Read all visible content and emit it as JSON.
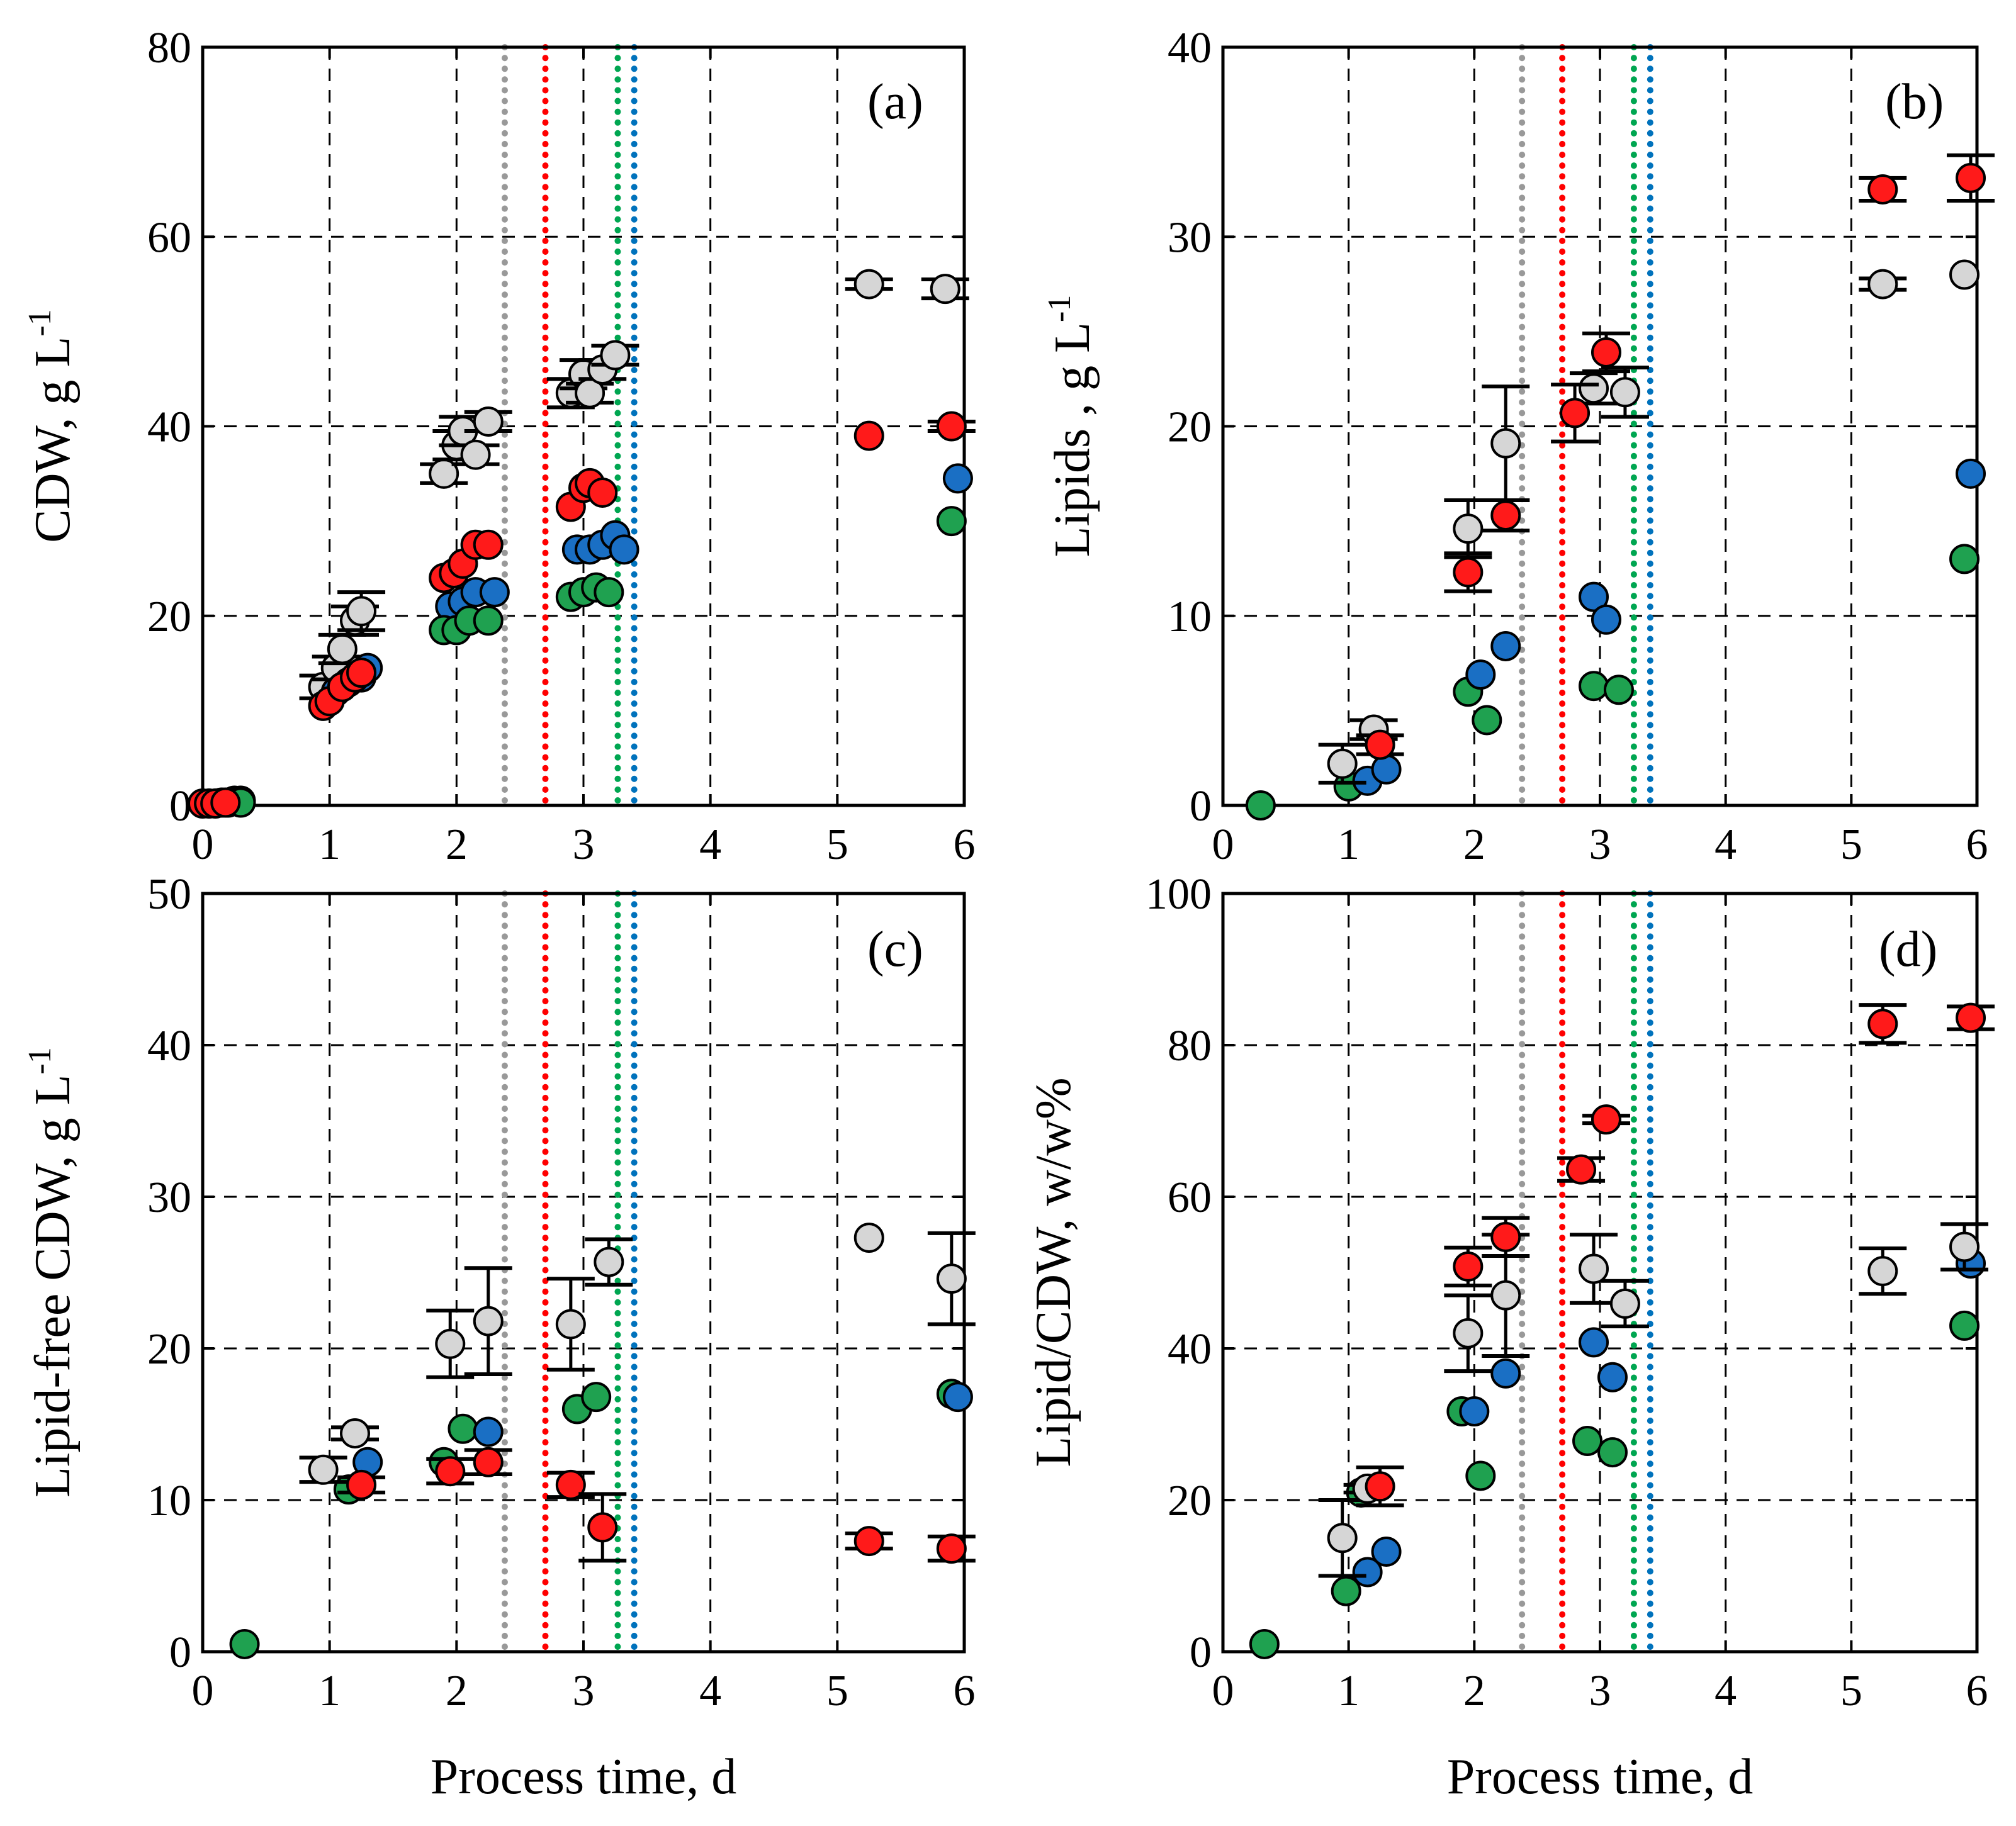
{
  "colors": {
    "gray": "#d6d6d6",
    "red": "#ff1a1a",
    "blue": "#1a6fc4",
    "green": "#1fa150",
    "line_gray": "#999999",
    "line_red": "#ff0000",
    "line_green": "#00a651",
    "line_blue": "#0072bc"
  },
  "xlabel": "Process time, d",
  "chart_data": [
    {
      "type": "scatter",
      "panel": "(a)",
      "ylabel": "CDW, g L",
      "ylabel_sup": "-1",
      "xlim": [
        0,
        6
      ],
      "ylim": [
        0,
        80
      ],
      "x_ticks": [
        "0",
        "1",
        "2",
        "3",
        "4",
        "5",
        "6"
      ],
      "y_ticks": [
        "0",
        "20",
        "40",
        "60",
        "80"
      ],
      "grid": true,
      "vlines": [
        {
          "x": 2.38,
          "color": "gray"
        },
        {
          "x": 2.7,
          "color": "red"
        },
        {
          "x": 3.27,
          "color": "green"
        },
        {
          "x": 3.4,
          "color": "blue"
        }
      ],
      "series": [
        {
          "color": "gray",
          "points": [
            {
              "x": 0.25,
              "y": 0.5
            },
            {
              "x": 0.3,
              "y": 0.5
            },
            {
              "x": 0.95,
              "y": 12.5,
              "err": 1.2
            },
            {
              "x": 1.05,
              "y": 14.5,
              "err": 1.2
            },
            {
              "x": 1.1,
              "y": 16.5,
              "err": 1.5
            },
            {
              "x": 1.2,
              "y": 19.5,
              "err": 1.5
            },
            {
              "x": 1.25,
              "y": 20.5,
              "err": 2.0
            },
            {
              "x": 1.9,
              "y": 35.0,
              "err": 1.0
            },
            {
              "x": 2.0,
              "y": 38.0,
              "err": 1.5
            },
            {
              "x": 2.05,
              "y": 39.5,
              "err": 1.5
            },
            {
              "x": 2.15,
              "y": 37.0,
              "err": 1.0
            },
            {
              "x": 2.25,
              "y": 40.5,
              "err": 1.0
            },
            {
              "x": 2.9,
              "y": 43.5,
              "err": 1.5
            },
            {
              "x": 3.0,
              "y": 45.5,
              "err": 1.5
            },
            {
              "x": 3.05,
              "y": 43.5,
              "err": 1.0
            },
            {
              "x": 3.15,
              "y": 46.0,
              "err": 1.0
            },
            {
              "x": 3.25,
              "y": 47.5,
              "err": 1.0
            },
            {
              "x": 5.25,
              "y": 55.0,
              "err": 0.5
            },
            {
              "x": 5.85,
              "y": 54.5,
              "err": 1.0
            }
          ]
        },
        {
          "color": "blue",
          "points": [
            {
              "x": 0.15,
              "y": 0.3
            },
            {
              "x": 0.2,
              "y": 0.3
            },
            {
              "x": 1.05,
              "y": 12.0
            },
            {
              "x": 1.15,
              "y": 13.0
            },
            {
              "x": 1.25,
              "y": 13.5
            },
            {
              "x": 1.3,
              "y": 14.5
            },
            {
              "x": 1.95,
              "y": 21.0
            },
            {
              "x": 2.05,
              "y": 21.5
            },
            {
              "x": 2.15,
              "y": 22.5
            },
            {
              "x": 2.3,
              "y": 22.5
            },
            {
              "x": 2.95,
              "y": 27.0
            },
            {
              "x": 3.05,
              "y": 27.0
            },
            {
              "x": 3.15,
              "y": 27.5
            },
            {
              "x": 3.25,
              "y": 28.5
            },
            {
              "x": 3.32,
              "y": 27.0
            },
            {
              "x": 5.95,
              "y": 34.5
            }
          ]
        },
        {
          "color": "green",
          "points": [
            {
              "x": 0.3,
              "y": 0.3
            },
            {
              "x": 1.9,
              "y": 18.5
            },
            {
              "x": 2.0,
              "y": 18.5
            },
            {
              "x": 2.1,
              "y": 19.5
            },
            {
              "x": 2.25,
              "y": 19.5
            },
            {
              "x": 2.9,
              "y": 22.0
            },
            {
              "x": 3.0,
              "y": 22.5
            },
            {
              "x": 3.1,
              "y": 23.0
            },
            {
              "x": 3.2,
              "y": 22.5
            },
            {
              "x": 5.9,
              "y": 30.0
            }
          ]
        },
        {
          "color": "red",
          "points": [
            {
              "x": 0.0,
              "y": 0.2
            },
            {
              "x": 0.05,
              "y": 0.2
            },
            {
              "x": 0.1,
              "y": 0.2
            },
            {
              "x": 0.18,
              "y": 0.3
            },
            {
              "x": 0.95,
              "y": 10.5
            },
            {
              "x": 1.0,
              "y": 11.0
            },
            {
              "x": 1.1,
              "y": 12.5
            },
            {
              "x": 1.2,
              "y": 13.5
            },
            {
              "x": 1.25,
              "y": 14.0
            },
            {
              "x": 1.9,
              "y": 24.0
            },
            {
              "x": 1.98,
              "y": 24.5
            },
            {
              "x": 2.05,
              "y": 25.5
            },
            {
              "x": 2.15,
              "y": 27.5
            },
            {
              "x": 2.25,
              "y": 27.5
            },
            {
              "x": 2.9,
              "y": 31.5
            },
            {
              "x": 3.0,
              "y": 33.5
            },
            {
              "x": 3.05,
              "y": 34.0
            },
            {
              "x": 3.15,
              "y": 33.0
            },
            {
              "x": 5.25,
              "y": 39.0
            },
            {
              "x": 5.9,
              "y": 40.0,
              "err": 0.5
            }
          ]
        }
      ]
    },
    {
      "type": "scatter",
      "panel": "(b)",
      "ylabel": "Lipids , g L",
      "ylabel_sup": "-1",
      "xlim": [
        0,
        6
      ],
      "ylim": [
        0,
        40
      ],
      "x_ticks": [
        "0",
        "1",
        "2",
        "3",
        "4",
        "5",
        "6"
      ],
      "y_ticks": [
        "0",
        "10",
        "20",
        "30",
        "40"
      ],
      "grid": true,
      "vlines": [
        {
          "x": 2.38,
          "color": "gray"
        },
        {
          "x": 2.7,
          "color": "red"
        },
        {
          "x": 3.27,
          "color": "green"
        },
        {
          "x": 3.4,
          "color": "blue"
        }
      ],
      "series": [
        {
          "color": "green",
          "points": [
            {
              "x": 0.3,
              "y": 0.0
            },
            {
              "x": 1.0,
              "y": 1.0
            },
            {
              "x": 1.95,
              "y": 6.0
            },
            {
              "x": 2.1,
              "y": 4.5
            },
            {
              "x": 2.95,
              "y": 6.3
            },
            {
              "x": 3.15,
              "y": 6.1
            },
            {
              "x": 5.9,
              "y": 13.0
            }
          ]
        },
        {
          "color": "blue",
          "points": [
            {
              "x": 1.15,
              "y": 1.3
            },
            {
              "x": 1.3,
              "y": 1.9
            },
            {
              "x": 2.05,
              "y": 6.9
            },
            {
              "x": 2.25,
              "y": 8.4
            },
            {
              "x": 2.95,
              "y": 11.0
            },
            {
              "x": 3.05,
              "y": 9.8
            },
            {
              "x": 5.95,
              "y": 17.5
            }
          ]
        },
        {
          "color": "gray",
          "points": [
            {
              "x": 0.95,
              "y": 2.2,
              "err": 1.0
            },
            {
              "x": 1.2,
              "y": 4.0,
              "err": 0.5
            },
            {
              "x": 1.95,
              "y": 14.6,
              "err": 1.5
            },
            {
              "x": 2.25,
              "y": 19.1,
              "err": 3.0
            },
            {
              "x": 2.95,
              "y": 22.0,
              "err": 0.8
            },
            {
              "x": 3.2,
              "y": 21.8,
              "err": 1.3
            },
            {
              "x": 5.25,
              "y": 27.5,
              "err": 0.3
            },
            {
              "x": 5.9,
              "y": 28.0
            }
          ]
        },
        {
          "color": "red",
          "points": [
            {
              "x": 1.25,
              "y": 3.2,
              "err": 0.5
            },
            {
              "x": 1.95,
              "y": 12.3,
              "err": 1.0
            },
            {
              "x": 2.25,
              "y": 15.3,
              "err": 0.8
            },
            {
              "x": 2.8,
              "y": 20.7,
              "err": 1.5
            },
            {
              "x": 3.05,
              "y": 23.9,
              "err": 1.0
            },
            {
              "x": 5.25,
              "y": 32.5,
              "err": 0.6
            },
            {
              "x": 5.95,
              "y": 33.1,
              "err": 1.2
            }
          ]
        }
      ]
    },
    {
      "type": "scatter",
      "panel": "(c)",
      "ylabel": "Lipid-free CDW, g L",
      "ylabel_sup": "-1",
      "xlim": [
        0,
        6
      ],
      "ylim": [
        0,
        50
      ],
      "x_ticks": [
        "0",
        "1",
        "2",
        "3",
        "4",
        "5",
        "6"
      ],
      "y_ticks": [
        "0",
        "10",
        "20",
        "30",
        "40",
        "50"
      ],
      "grid": true,
      "vlines": [
        {
          "x": 2.38,
          "color": "gray"
        },
        {
          "x": 2.7,
          "color": "red"
        },
        {
          "x": 3.27,
          "color": "green"
        },
        {
          "x": 3.4,
          "color": "blue"
        }
      ],
      "series": [
        {
          "color": "green",
          "points": [
            {
              "x": 0.33,
              "y": 0.5
            },
            {
              "x": 1.15,
              "y": 10.7
            },
            {
              "x": 1.9,
              "y": 12.5
            },
            {
              "x": 2.05,
              "y": 14.7
            },
            {
              "x": 2.95,
              "y": 16.0
            },
            {
              "x": 3.1,
              "y": 16.8
            },
            {
              "x": 5.9,
              "y": 17.0
            }
          ]
        },
        {
          "color": "blue",
          "points": [
            {
              "x": 1.3,
              "y": 12.5
            },
            {
              "x": 2.25,
              "y": 14.5
            },
            {
              "x": 5.95,
              "y": 16.8
            }
          ]
        },
        {
          "color": "gray",
          "points": [
            {
              "x": 0.95,
              "y": 12.0,
              "err": 0.8
            },
            {
              "x": 1.2,
              "y": 14.4,
              "err": 0.4
            },
            {
              "x": 1.95,
              "y": 20.3,
              "err": 2.2
            },
            {
              "x": 2.25,
              "y": 21.8,
              "err": 3.5
            },
            {
              "x": 2.9,
              "y": 21.6,
              "err": 3.0
            },
            {
              "x": 3.2,
              "y": 25.7,
              "err": 1.5
            },
            {
              "x": 5.25,
              "y": 27.3
            },
            {
              "x": 5.9,
              "y": 24.6,
              "err": 3.0
            }
          ]
        },
        {
          "color": "red",
          "points": [
            {
              "x": 1.25,
              "y": 11.0,
              "err": 0.5
            },
            {
              "x": 1.95,
              "y": 11.9,
              "err": 0.8
            },
            {
              "x": 2.25,
              "y": 12.5,
              "err": 0.8
            },
            {
              "x": 2.9,
              "y": 11.0,
              "err": 0.8
            },
            {
              "x": 3.15,
              "y": 8.2,
              "err": 2.2
            },
            {
              "x": 5.25,
              "y": 7.3,
              "err": 0.5
            },
            {
              "x": 5.9,
              "y": 6.8,
              "err": 0.8
            }
          ]
        }
      ]
    },
    {
      "type": "scatter",
      "panel": "(d)",
      "ylabel": "Lipid/CDW, w/w%",
      "xlim": [
        0,
        6
      ],
      "ylim": [
        0,
        100
      ],
      "x_ticks": [
        "0",
        "1",
        "2",
        "3",
        "4",
        "5",
        "6"
      ],
      "y_ticks": [
        "0",
        "20",
        "40",
        "60",
        "80",
        "100"
      ],
      "grid": true,
      "vlines": [
        {
          "x": 2.38,
          "color": "gray"
        },
        {
          "x": 2.7,
          "color": "red"
        },
        {
          "x": 3.27,
          "color": "green"
        },
        {
          "x": 3.4,
          "color": "blue"
        }
      ],
      "series": [
        {
          "color": "green",
          "points": [
            {
              "x": 0.33,
              "y": 1.0
            },
            {
              "x": 0.98,
              "y": 8.0
            },
            {
              "x": 1.1,
              "y": 21.0
            },
            {
              "x": 1.9,
              "y": 31.7
            },
            {
              "x": 2.05,
              "y": 23.2
            },
            {
              "x": 2.9,
              "y": 27.8
            },
            {
              "x": 3.1,
              "y": 26.3
            },
            {
              "x": 5.9,
              "y": 43.0
            }
          ]
        },
        {
          "color": "blue",
          "points": [
            {
              "x": 1.15,
              "y": 10.5
            },
            {
              "x": 1.3,
              "y": 13.2
            },
            {
              "x": 2.0,
              "y": 31.7
            },
            {
              "x": 2.25,
              "y": 36.7
            },
            {
              "x": 2.95,
              "y": 40.8
            },
            {
              "x": 3.1,
              "y": 36.2
            },
            {
              "x": 5.95,
              "y": 51.2
            }
          ]
        },
        {
          "color": "gray",
          "points": [
            {
              "x": 0.95,
              "y": 15.0,
              "err": 5.0
            },
            {
              "x": 1.15,
              "y": 21.5,
              "err": 0.5
            },
            {
              "x": 1.95,
              "y": 42.0,
              "err": 5.0
            },
            {
              "x": 2.25,
              "y": 47.0,
              "err": 8.0
            },
            {
              "x": 2.95,
              "y": 50.5,
              "err": 4.5
            },
            {
              "x": 3.2,
              "y": 45.9,
              "err": 3.0
            },
            {
              "x": 5.25,
              "y": 50.2,
              "err": 3.0
            },
            {
              "x": 5.9,
              "y": 53.4,
              "err": 3.0
            }
          ]
        },
        {
          "color": "red",
          "points": [
            {
              "x": 1.25,
              "y": 21.8,
              "err": 2.5
            },
            {
              "x": 1.95,
              "y": 50.8,
              "err": 2.5
            },
            {
              "x": 2.25,
              "y": 54.7,
              "err": 2.5
            },
            {
              "x": 2.85,
              "y": 63.6,
              "err": 1.5
            },
            {
              "x": 3.05,
              "y": 70.2,
              "err": 0.5
            },
            {
              "x": 5.25,
              "y": 82.8,
              "err": 2.5
            },
            {
              "x": 5.95,
              "y": 83.6,
              "err": 1.5
            }
          ]
        }
      ]
    }
  ]
}
